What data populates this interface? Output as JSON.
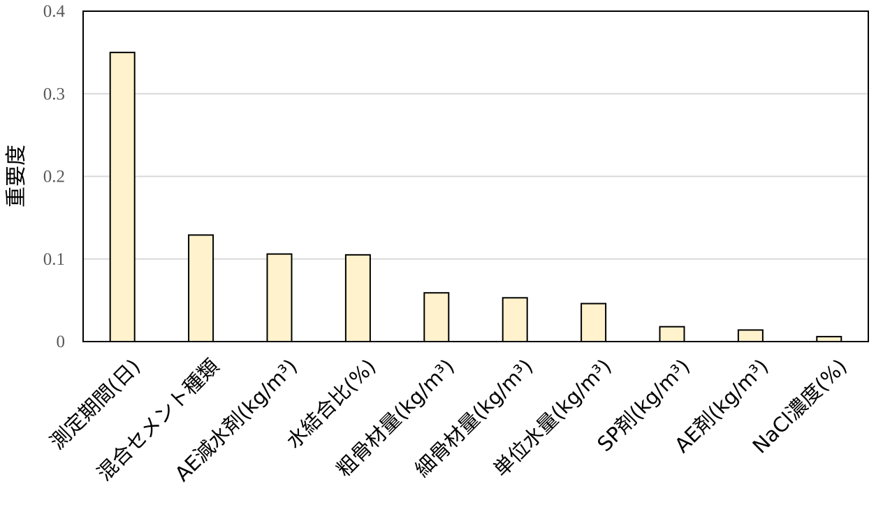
{
  "chart_data": {
    "type": "bar",
    "title": "",
    "xlabel": "",
    "ylabel": "重要度",
    "ylim": [
      0,
      0.4
    ],
    "yticks": [
      0,
      0.1,
      0.2,
      0.3,
      0.4
    ],
    "ytick_labels": [
      "0",
      "0.1",
      "0.2",
      "0.3",
      "0.4"
    ],
    "grid": true,
    "categories": [
      "測定期間(日)",
      "混合セメント種類",
      "AE減水剤(kg/m³)",
      "水結合比(%)",
      "粗骨材量(kg/m³)",
      "細骨材量(kg/m³)",
      "単位水量(kg/m³)",
      "SP剤(kg/m³)",
      "AE剤(kg/m³)",
      "NaCl濃度(%)"
    ],
    "values": [
      0.35,
      0.129,
      0.106,
      0.105,
      0.059,
      0.053,
      0.046,
      0.018,
      0.014,
      0.006
    ],
    "bar_color": "#fff2cc",
    "bar_edge_color": "#000000",
    "grid_color": "#d9d9d9"
  }
}
